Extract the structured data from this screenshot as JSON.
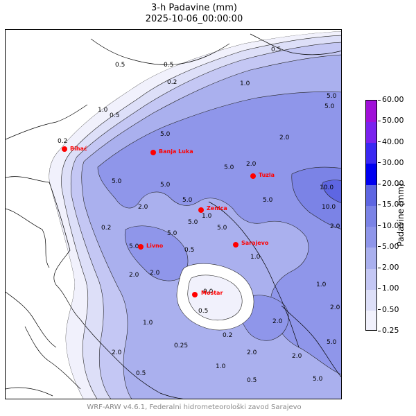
{
  "title": {
    "line1": "3-h Padavine (mm)",
    "line2": "2025-10-06_00:00:00"
  },
  "colorbar": {
    "label": "Padavine (mm)",
    "levels": [
      "0.25",
      "0.50",
      "1.00",
      "2.00",
      "5.00",
      "10.00",
      "15.00",
      "20.00",
      "30.00",
      "40.00",
      "50.00",
      "60.00"
    ],
    "colors": [
      "#f1f1fc",
      "#dddff8",
      "#c4c7f4",
      "#aab0ee",
      "#8f96ea",
      "#7b83e6",
      "#5e66e2",
      "#0000f0",
      "#3a28f2",
      "#7a22ee",
      "#a010d8"
    ]
  },
  "cities": [
    {
      "name": "Bihać"
    },
    {
      "name": "Banja Luka"
    },
    {
      "name": "Tuzla"
    },
    {
      "name": "Zenica"
    },
    {
      "name": "Sarajevo"
    },
    {
      "name": "Livno"
    },
    {
      "name": "Mostar"
    }
  ],
  "credits": "WRF-ARW v4.6.1, Federalni hidrometeorološki zavod Sarajevo"
}
